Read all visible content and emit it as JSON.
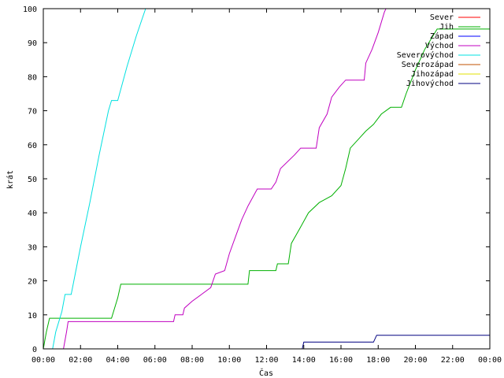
{
  "chart_data": {
    "type": "line",
    "title": "",
    "xlabel": "Čas",
    "ylabel": "krát",
    "x_unit": "time of day (HH:MM)",
    "xlim": [
      "00:00",
      "24:00"
    ],
    "ylim": [
      0,
      100
    ],
    "x_ticks": [
      "00:00",
      "02:00",
      "04:00",
      "06:00",
      "08:00",
      "10:00",
      "12:00",
      "14:00",
      "16:00",
      "18:00",
      "20:00",
      "22:00",
      "00:00"
    ],
    "y_ticks": [
      "0",
      "10",
      "20",
      "30",
      "40",
      "50",
      "60",
      "70",
      "80",
      "90",
      "100"
    ],
    "grid": false,
    "legend_position": "top-right",
    "series": [
      {
        "name": "Sever",
        "color": "#ff0000",
        "points": []
      },
      {
        "name": "Jih",
        "color": "#00b000",
        "points": [
          [
            "00:00",
            0
          ],
          [
            "00:10",
            5
          ],
          [
            "00:20",
            9
          ],
          [
            "03:40",
            9
          ],
          [
            "04:00",
            15
          ],
          [
            "04:10",
            19
          ],
          [
            "11:00",
            19
          ],
          [
            "11:05",
            23
          ],
          [
            "12:30",
            23
          ],
          [
            "12:35",
            25
          ],
          [
            "13:10",
            25
          ],
          [
            "13:20",
            31
          ],
          [
            "13:45",
            35
          ],
          [
            "14:15",
            40
          ],
          [
            "14:50",
            43
          ],
          [
            "15:30",
            45
          ],
          [
            "16:00",
            48
          ],
          [
            "16:15",
            53
          ],
          [
            "16:30",
            59
          ],
          [
            "17:00",
            62
          ],
          [
            "17:20",
            64
          ],
          [
            "17:45",
            66
          ],
          [
            "18:10",
            69
          ],
          [
            "18:40",
            71
          ],
          [
            "19:15",
            71
          ],
          [
            "19:30",
            75
          ],
          [
            "20:00",
            82
          ],
          [
            "20:30",
            88
          ],
          [
            "21:10",
            94
          ],
          [
            "24:00",
            94
          ]
        ]
      },
      {
        "name": "Západ",
        "color": "#0000ff",
        "points": []
      },
      {
        "name": "Východ",
        "color": "#c000c0",
        "points": [
          [
            "01:05",
            0
          ],
          [
            "01:15",
            5
          ],
          [
            "01:20",
            8
          ],
          [
            "07:00",
            8
          ],
          [
            "07:05",
            10
          ],
          [
            "07:30",
            10
          ],
          [
            "07:35",
            12
          ],
          [
            "08:00",
            14
          ],
          [
            "08:30",
            16
          ],
          [
            "09:00",
            18
          ],
          [
            "09:15",
            22
          ],
          [
            "09:45",
            23
          ],
          [
            "10:00",
            28
          ],
          [
            "10:20",
            33
          ],
          [
            "10:40",
            38
          ],
          [
            "11:00",
            42
          ],
          [
            "11:30",
            47
          ],
          [
            "12:15",
            47
          ],
          [
            "12:30",
            49
          ],
          [
            "12:45",
            53
          ],
          [
            "13:30",
            57
          ],
          [
            "13:50",
            59
          ],
          [
            "14:40",
            59
          ],
          [
            "14:50",
            65
          ],
          [
            "15:15",
            69
          ],
          [
            "15:30",
            74
          ],
          [
            "15:55",
            77
          ],
          [
            "16:15",
            79
          ],
          [
            "17:15",
            79
          ],
          [
            "17:20",
            84
          ],
          [
            "17:40",
            88
          ],
          [
            "18:00",
            93
          ],
          [
            "18:20",
            99
          ],
          [
            "18:25",
            100
          ]
        ]
      },
      {
        "name": "Severovýchod",
        "color": "#00e0e0",
        "points": [
          [
            "00:30",
            0
          ],
          [
            "00:40",
            5
          ],
          [
            "01:00",
            11
          ],
          [
            "01:10",
            16
          ],
          [
            "01:30",
            16
          ],
          [
            "02:00",
            30
          ],
          [
            "02:30",
            43
          ],
          [
            "03:00",
            57
          ],
          [
            "03:30",
            70
          ],
          [
            "03:40",
            73
          ],
          [
            "04:00",
            73
          ],
          [
            "04:30",
            83
          ],
          [
            "05:00",
            92
          ],
          [
            "05:30",
            100
          ]
        ]
      },
      {
        "name": "Severozápad",
        "color": "#c05000",
        "points": []
      },
      {
        "name": "Jihozápad",
        "color": "#e0e000",
        "points": []
      },
      {
        "name": "Jihovýchod",
        "color": "#000080",
        "points": [
          [
            "13:55",
            0
          ],
          [
            "14:00",
            2
          ],
          [
            "17:45",
            2
          ],
          [
            "17:55",
            4
          ],
          [
            "24:00",
            4
          ]
        ]
      }
    ]
  }
}
